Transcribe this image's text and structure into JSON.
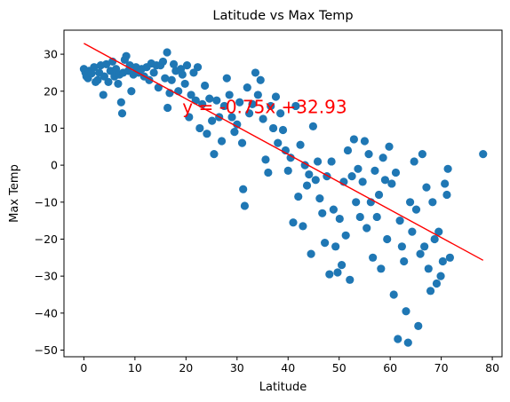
{
  "chart_data": {
    "type": "scatter",
    "title": "Latitude vs Max Temp",
    "xlabel": "Latitude",
    "ylabel": "Max Temp",
    "xlim": [
      -3.9,
      81.9
    ],
    "ylim": [
      -51.8,
      36.5
    ],
    "xticks": [
      0,
      10,
      20,
      30,
      40,
      50,
      60,
      70,
      80
    ],
    "yticks": [
      -50,
      -40,
      -30,
      -20,
      -10,
      0,
      10,
      20,
      30
    ],
    "grid": false,
    "marker_color": "#1f77b4",
    "line_color": "#ff0000",
    "regression": {
      "slope": -0.75,
      "intercept": 32.93,
      "x_range": [
        0,
        78.2
      ],
      "label": "y = -0.75x +32.93",
      "label_anchor": [
        19.3,
        15.7
      ]
    },
    "points": [
      [
        0,
        26
      ],
      [
        0.3,
        25
      ],
      [
        0.5,
        24
      ],
      [
        0.8,
        23.5
      ],
      [
        1,
        25.5
      ],
      [
        1.5,
        24.8
      ],
      [
        2,
        26.5
      ],
      [
        2.3,
        22.5
      ],
      [
        2.7,
        23
      ],
      [
        3,
        25
      ],
      [
        3.3,
        27
      ],
      [
        3.8,
        19
      ],
      [
        4,
        24
      ],
      [
        4.4,
        27.3
      ],
      [
        4.8,
        22.5
      ],
      [
        5.2,
        25.5
      ],
      [
        5.6,
        28
      ],
      [
        6,
        24
      ],
      [
        6.3,
        26
      ],
      [
        6.7,
        22
      ],
      [
        7,
        24.5
      ],
      [
        7.3,
        17
      ],
      [
        7.5,
        14
      ],
      [
        7.7,
        25
      ],
      [
        8,
        28.5
      ],
      [
        8.3,
        29.5
      ],
      [
        8.7,
        25.5
      ],
      [
        9,
        27
      ],
      [
        9.3,
        20
      ],
      [
        9.7,
        24.5
      ],
      [
        10.2,
        26.5
      ],
      [
        10.7,
        25
      ],
      [
        11.3,
        26
      ],
      [
        11.8,
        24
      ],
      [
        12.3,
        26.5
      ],
      [
        12.8,
        23
      ],
      [
        13.2,
        27.5
      ],
      [
        13.7,
        25
      ],
      [
        14.2,
        27
      ],
      [
        14.6,
        21
      ],
      [
        15,
        27
      ],
      [
        15.5,
        28
      ],
      [
        15.9,
        23.5
      ],
      [
        16.3,
        30.5
      ],
      [
        16.4,
        15.5
      ],
      [
        16.8,
        19.5
      ],
      [
        17.2,
        23
      ],
      [
        17.6,
        27.3
      ],
      [
        18,
        25.5
      ],
      [
        18.5,
        20
      ],
      [
        19,
        26
      ],
      [
        19.3,
        24.5
      ],
      [
        19.8,
        22
      ],
      [
        20.2,
        27
      ],
      [
        20.6,
        13
      ],
      [
        21,
        19
      ],
      [
        21.5,
        25
      ],
      [
        21.9,
        17.5
      ],
      [
        22.3,
        26.5
      ],
      [
        22.7,
        10
      ],
      [
        23.2,
        16.5
      ],
      [
        23.7,
        21.5
      ],
      [
        24.1,
        8.5
      ],
      [
        24.6,
        18
      ],
      [
        25.1,
        12
      ],
      [
        25.5,
        3
      ],
      [
        26,
        17.5
      ],
      [
        26.5,
        13
      ],
      [
        27,
        6.5
      ],
      [
        27.5,
        16
      ],
      [
        28,
        23.5
      ],
      [
        28.5,
        19
      ],
      [
        29,
        13
      ],
      [
        29.5,
        9
      ],
      [
        30,
        11
      ],
      [
        30.5,
        17
      ],
      [
        31,
        6
      ],
      [
        31.2,
        -6.5
      ],
      [
        31.5,
        -11
      ],
      [
        32,
        21
      ],
      [
        32.4,
        14
      ],
      [
        33,
        16.5
      ],
      [
        33.6,
        25
      ],
      [
        34.1,
        19
      ],
      [
        34.6,
        23
      ],
      [
        35.1,
        12.5
      ],
      [
        35.6,
        1.5
      ],
      [
        36.1,
        -2
      ],
      [
        36.6,
        16
      ],
      [
        37.1,
        10
      ],
      [
        37.6,
        18.5
      ],
      [
        38,
        6
      ],
      [
        38.5,
        14
      ],
      [
        39,
        9.5
      ],
      [
        39.5,
        4
      ],
      [
        40,
        -1.5
      ],
      [
        40.5,
        2
      ],
      [
        41,
        -15.5
      ],
      [
        41.5,
        16
      ],
      [
        42,
        -8.5
      ],
      [
        42.4,
        5.5
      ],
      [
        42.9,
        -16.5
      ],
      [
        43.3,
        0
      ],
      [
        43.7,
        -5.5
      ],
      [
        44.1,
        -2.5
      ],
      [
        44.5,
        -24
      ],
      [
        44.9,
        10.5
      ],
      [
        45.4,
        -4
      ],
      [
        45.8,
        1
      ],
      [
        46.2,
        -9
      ],
      [
        46.7,
        -13
      ],
      [
        47.2,
        -21
      ],
      [
        47.6,
        -3
      ],
      [
        48.1,
        -29.5
      ],
      [
        48.5,
        1
      ],
      [
        48.9,
        -12
      ],
      [
        49.3,
        -22
      ],
      [
        49.7,
        -29
      ],
      [
        50.1,
        -14.5
      ],
      [
        50.5,
        -27
      ],
      [
        50.9,
        -4.5
      ],
      [
        51.3,
        -19
      ],
      [
        51.7,
        4
      ],
      [
        52.1,
        -31
      ],
      [
        52.5,
        -3
      ],
      [
        52.9,
        7
      ],
      [
        53.3,
        -10
      ],
      [
        53.7,
        -1
      ],
      [
        54.1,
        -14
      ],
      [
        54.6,
        -4.5
      ],
      [
        55,
        6.5
      ],
      [
        55.4,
        -17
      ],
      [
        55.8,
        3
      ],
      [
        56.2,
        -10
      ],
      [
        56.6,
        -25
      ],
      [
        57,
        -1.5
      ],
      [
        57.4,
        -14
      ],
      [
        57.8,
        -8
      ],
      [
        58.2,
        -28
      ],
      [
        58.6,
        2
      ],
      [
        59,
        -4
      ],
      [
        59.4,
        -20
      ],
      [
        59.8,
        5
      ],
      [
        60.3,
        -5
      ],
      [
        60.7,
        -35
      ],
      [
        61.1,
        -2
      ],
      [
        61.5,
        -47
      ],
      [
        61.9,
        -15
      ],
      [
        62.3,
        -22
      ],
      [
        62.7,
        -26
      ],
      [
        63.1,
        -39.5
      ],
      [
        63.5,
        -48
      ],
      [
        63.9,
        -10
      ],
      [
        64.3,
        -18
      ],
      [
        64.7,
        1
      ],
      [
        65.1,
        -12
      ],
      [
        65.5,
        -43.5
      ],
      [
        65.9,
        -24
      ],
      [
        66.3,
        3
      ],
      [
        66.7,
        -22
      ],
      [
        67.1,
        -6
      ],
      [
        67.5,
        -28
      ],
      [
        67.9,
        -34
      ],
      [
        68.3,
        -10
      ],
      [
        68.7,
        -20
      ],
      [
        69.1,
        -32
      ],
      [
        69.5,
        -18
      ],
      [
        69.9,
        -30
      ],
      [
        70.3,
        -26
      ],
      [
        70.7,
        -5
      ],
      [
        71.1,
        -8
      ],
      [
        71.3,
        -1
      ],
      [
        71.7,
        -25
      ],
      [
        78.2,
        3
      ]
    ]
  }
}
